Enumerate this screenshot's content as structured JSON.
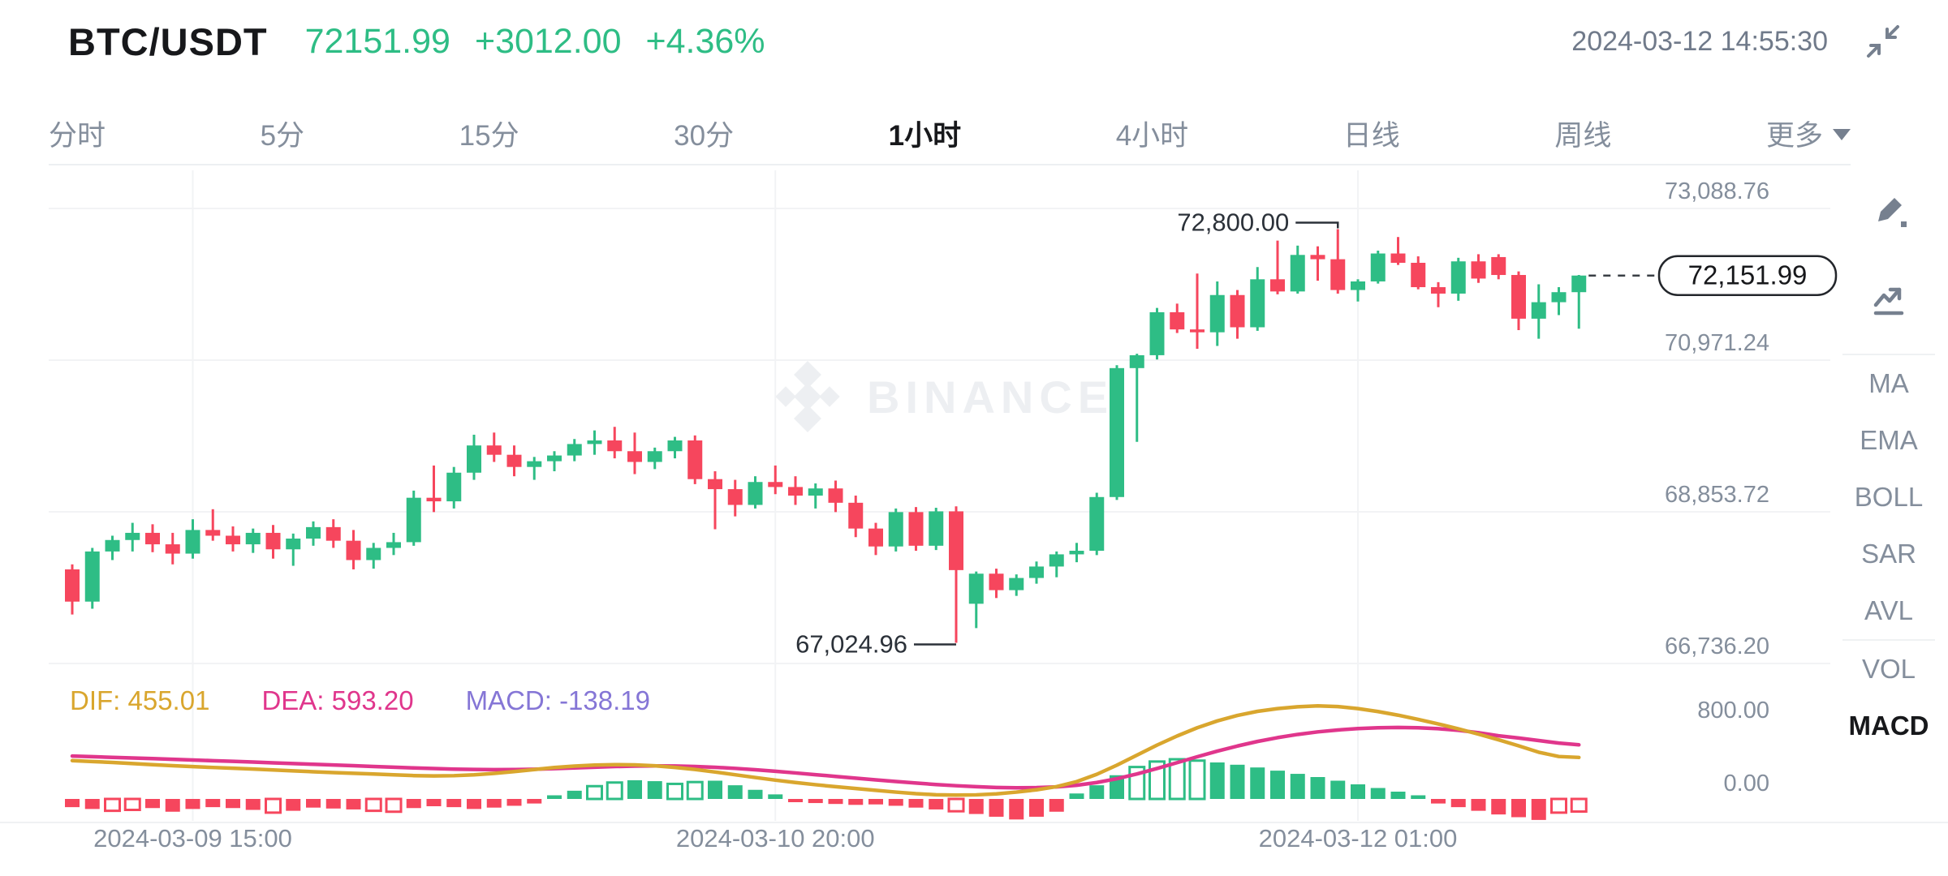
{
  "header": {
    "symbol": "BTC/USDT",
    "price": "72151.99",
    "change": "+3012.00",
    "change_pct": "+4.36%",
    "timestamp": "2024-03-12 14:55:30"
  },
  "tabs": {
    "items": [
      "分时",
      "5分",
      "15分",
      "30分",
      "1小时",
      "4小时",
      "日线",
      "周线"
    ],
    "active": "1小时",
    "more_label": "更多"
  },
  "side_rail": {
    "overlays": [
      "MA",
      "EMA",
      "BOLL",
      "SAR",
      "AVL"
    ],
    "panes": [
      "VOL",
      "MACD"
    ],
    "active_pane": "MACD"
  },
  "macd_legend": {
    "dif": "DIF: 455.01",
    "dea": "DEA: 593.20",
    "macd": "MACD: -138.19"
  },
  "watermark": "BINANCE",
  "colors": {
    "up": "#2EBD85",
    "down": "#F6465D",
    "dif_line": "#D9A62E",
    "dea_line": "#E0368C",
    "macd_text": "#8576D6",
    "text_dark": "#17181B",
    "text_gray": "#848E9C",
    "grid": "#F2F3F5",
    "annotation": "#2B3139"
  },
  "chart_data": {
    "type": "candlestick+macd",
    "interval": "1小时",
    "price_axis": {
      "labels": [
        "73,088.76",
        "70,971.24",
        "68,853.72",
        "66,736.20"
      ],
      "values": [
        73088.76,
        70971.24,
        68853.72,
        66736.2
      ]
    },
    "time_axis": {
      "labels": [
        "2024-03-09 15:00",
        "2024-03-10 20:00",
        "2024-03-12 01:00"
      ],
      "candle_index": [
        6,
        35,
        64
      ]
    },
    "annotations": {
      "high_label": "72,800.00",
      "high_value": 72800,
      "high_candle": 63,
      "low_label": "67,024.96",
      "low_value": 67024.96,
      "low_candle": 44,
      "last_price_label": "72,151.99",
      "last_price_value": 72151.99
    },
    "candles_ohlc": [
      [
        68050,
        68120,
        67420,
        67600
      ],
      [
        67600,
        68350,
        67500,
        68300
      ],
      [
        68300,
        68520,
        68180,
        68460
      ],
      [
        68460,
        68700,
        68300,
        68560
      ],
      [
        68560,
        68680,
        68290,
        68400
      ],
      [
        68400,
        68560,
        68120,
        68270
      ],
      [
        68270,
        68750,
        68200,
        68600
      ],
      [
        68600,
        68890,
        68450,
        68520
      ],
      [
        68520,
        68650,
        68300,
        68400
      ],
      [
        68400,
        68620,
        68280,
        68560
      ],
      [
        68560,
        68670,
        68200,
        68330
      ],
      [
        68330,
        68550,
        68100,
        68480
      ],
      [
        68480,
        68720,
        68380,
        68640
      ],
      [
        68640,
        68750,
        68350,
        68450
      ],
      [
        68450,
        68600,
        68050,
        68180
      ],
      [
        68180,
        68420,
        68060,
        68350
      ],
      [
        68350,
        68560,
        68250,
        68430
      ],
      [
        68430,
        69150,
        68380,
        69050
      ],
      [
        69050,
        69500,
        68850,
        69000
      ],
      [
        69000,
        69480,
        68900,
        69400
      ],
      [
        69400,
        69930,
        69300,
        69780
      ],
      [
        69780,
        69960,
        69550,
        69650
      ],
      [
        69650,
        69780,
        69350,
        69480
      ],
      [
        69480,
        69620,
        69300,
        69560
      ],
      [
        69560,
        69700,
        69420,
        69640
      ],
      [
        69640,
        69870,
        69560,
        69800
      ],
      [
        69800,
        69990,
        69650,
        69850
      ],
      [
        69850,
        70040,
        69600,
        69700
      ],
      [
        69700,
        69960,
        69380,
        69550
      ],
      [
        69550,
        69750,
        69450,
        69700
      ],
      [
        69700,
        69900,
        69600,
        69850
      ],
      [
        69850,
        69920,
        69240,
        69310
      ],
      [
        69310,
        69420,
        68610,
        69170
      ],
      [
        69170,
        69300,
        68790,
        68950
      ],
      [
        68950,
        69350,
        68900,
        69270
      ],
      [
        69270,
        69500,
        69100,
        69200
      ],
      [
        69200,
        69350,
        68950,
        69080
      ],
      [
        69080,
        69250,
        68900,
        69180
      ],
      [
        69180,
        69290,
        68850,
        68980
      ],
      [
        68980,
        69080,
        68500,
        68620
      ],
      [
        68620,
        68700,
        68250,
        68370
      ],
      [
        68370,
        68900,
        68300,
        68850
      ],
      [
        68850,
        68920,
        68310,
        68380
      ],
      [
        68380,
        68910,
        68320,
        68860
      ],
      [
        68860,
        68930,
        67024.96,
        68040
      ],
      [
        67570,
        68020,
        67230,
        67990
      ],
      [
        67990,
        68060,
        67650,
        67760
      ],
      [
        67760,
        67980,
        67680,
        67930
      ],
      [
        67930,
        68160,
        67850,
        68090
      ],
      [
        68090,
        68300,
        67940,
        68260
      ],
      [
        68260,
        68420,
        68150,
        68310
      ],
      [
        68310,
        69120,
        68250,
        69060
      ],
      [
        69060,
        70900,
        69020,
        70860
      ],
      [
        70860,
        71060,
        69830,
        71040
      ],
      [
        71040,
        71700,
        70980,
        71640
      ],
      [
        71640,
        71760,
        71350,
        71400
      ],
      [
        71400,
        72180,
        71130,
        71360
      ],
      [
        71360,
        72070,
        71170,
        71880
      ],
      [
        71880,
        71950,
        71270,
        71430
      ],
      [
        71430,
        72270,
        71380,
        72100
      ],
      [
        72100,
        72640,
        71890,
        71930
      ],
      [
        71930,
        72570,
        71900,
        72440
      ],
      [
        72440,
        72560,
        72080,
        72380
      ],
      [
        72380,
        72800,
        71900,
        71950
      ],
      [
        71950,
        72100,
        71790,
        72070
      ],
      [
        72070,
        72500,
        72040,
        72460
      ],
      [
        72460,
        72690,
        72300,
        72330
      ],
      [
        72330,
        72420,
        71960,
        71990
      ],
      [
        71990,
        72060,
        71710,
        71900
      ],
      [
        71900,
        72400,
        71800,
        72350
      ],
      [
        72350,
        72450,
        72050,
        72110
      ],
      [
        72410,
        72450,
        72100,
        72160
      ],
      [
        72160,
        72210,
        71390,
        71550
      ],
      [
        71550,
        72030,
        71270,
        71780
      ],
      [
        71780,
        71990,
        71600,
        71920
      ],
      [
        71920,
        72160,
        71410,
        72151.99
      ]
    ],
    "macd": {
      "axis_labels": [
        "800.00",
        "0.00"
      ],
      "axis_values": [
        800,
        0
      ],
      "dif": [
        420,
        410,
        400,
        388,
        376,
        364,
        354,
        345,
        337,
        328,
        318,
        308,
        298,
        289,
        281,
        273,
        264,
        256,
        252,
        255,
        264,
        280,
        300,
        322,
        344,
        360,
        371,
        376,
        373,
        363,
        346,
        323,
        295,
        265,
        235,
        206,
        180,
        156,
        134,
        114,
        94,
        75,
        58,
        46,
        42,
        45,
        56,
        75,
        100,
        135,
        190,
        270,
        370,
        480,
        590,
        690,
        780,
        855,
        915,
        960,
        990,
        1010,
        1020,
        1012,
        990,
        958,
        918,
        872,
        822,
        768,
        710,
        648,
        582,
        512,
        465,
        455
      ],
      "dea": [
        470,
        463,
        456,
        449,
        442,
        434,
        427,
        419,
        412,
        404,
        396,
        388,
        380,
        372,
        364,
        356,
        348,
        340,
        333,
        327,
        323,
        321,
        322,
        326,
        332,
        340,
        348,
        355,
        360,
        362,
        361,
        356,
        347,
        335,
        320,
        303,
        285,
        266,
        247,
        228,
        209,
        191,
        174,
        158,
        145,
        134,
        126,
        122,
        124,
        132,
        150,
        180,
        222,
        274,
        334,
        398,
        462,
        524,
        580,
        630,
        672,
        707,
        735,
        756,
        771,
        780,
        783,
        780,
        770,
        752,
        726,
        692,
        668,
        640,
        612,
        593
      ],
      "hist": [
        -90,
        -110,
        -130,
        -120,
        -100,
        -140,
        -110,
        -90,
        -100,
        -120,
        -150,
        -130,
        -95,
        -105,
        -115,
        -130,
        -140,
        -100,
        -80,
        -90,
        -110,
        -95,
        -75,
        -50,
        40,
        90,
        140,
        180,
        205,
        195,
        165,
        185,
        200,
        150,
        100,
        50,
        -30,
        -45,
        -55,
        -65,
        -60,
        -75,
        -95,
        -115,
        -135,
        -165,
        -195,
        -225,
        -195,
        -140,
        60,
        150,
        260,
        350,
        410,
        435,
        420,
        400,
        375,
        345,
        310,
        275,
        240,
        200,
        160,
        120,
        80,
        40,
        -50,
        -90,
        -130,
        -170,
        -200,
        -230,
        -150,
        -138.19
      ],
      "hollow_indices": [
        2,
        3,
        10,
        15,
        16,
        26,
        27,
        30,
        31,
        44,
        53,
        54,
        55,
        56,
        74,
        75
      ]
    }
  }
}
